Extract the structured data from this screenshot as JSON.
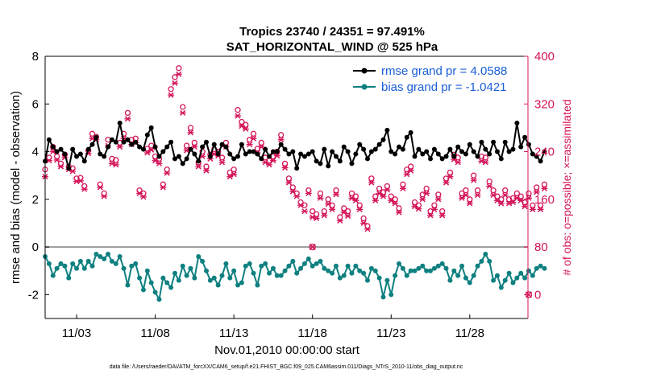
{
  "chart_data": {
    "type": "line",
    "title": [
      "Tropics 23740 / 24351 = 97.491%",
      "SAT_HORIZONTAL_WIND @ 525 hPa"
    ],
    "xlabel": "Nov.01,2010 00:00:00 start",
    "ylabel": "rmse and bias (model - observation)",
    "ylabel_right": "# of obs: o=possible; ×=assimilated",
    "footnote": "data file: /Users/raeder/DAI/ATM_forcXX/CAM6_setup/f.e21.FHIST_BGC.f09_025.CAM6assim.011/Diags_NTrS_2010-11/obs_diag_output.nc",
    "x_range": [
      1.0,
      31.7
    ],
    "ylim": [
      -3,
      8
    ],
    "ylim_right": [
      -40,
      400
    ],
    "x_ticks": [
      {
        "value": 3,
        "label": "11/03"
      },
      {
        "value": 8,
        "label": "11/08"
      },
      {
        "value": 13,
        "label": "11/13"
      },
      {
        "value": 18,
        "label": "11/18"
      },
      {
        "value": 23,
        "label": "11/23"
      },
      {
        "value": 28,
        "label": "11/28"
      }
    ],
    "y_ticks_left": [
      "-2",
      "0",
      "2",
      "4",
      "6",
      "8"
    ],
    "y_ticks_right": [
      "0",
      "80",
      "160",
      "240",
      "320",
      "400"
    ],
    "zero_line": 0,
    "x_start": 1.0,
    "x_step": 0.25,
    "legend": [
      {
        "label": "rmse grand pr = 4.0588",
        "color": "#000000"
      },
      {
        "label": "bias grand pr = -1.0421",
        "color": "#0f8080"
      }
    ],
    "series": [
      {
        "name": "rmse",
        "color": "#000000",
        "values": [
          3.6,
          4.5,
          4.2,
          4.0,
          4.1,
          3.9,
          3.3,
          4.1,
          3.8,
          3.9,
          3.6,
          4.1,
          4.3,
          4.6,
          3.9,
          3.8,
          4.2,
          4.5,
          4.4,
          5.2,
          4.4,
          4.5,
          4.3,
          4.4,
          4.2,
          4.1,
          4.7,
          5.0,
          4.2,
          3.8,
          4.0,
          4.2,
          4.4,
          3.7,
          3.8,
          3.5,
          3.7,
          4.1,
          3.9,
          3.6,
          4.2,
          4.4,
          3.8,
          4.3,
          3.9,
          4.3,
          4.2,
          3.9,
          3.7,
          3.8,
          4.3,
          3.9,
          4.0,
          4.0,
          3.9,
          3.7,
          4.1,
          3.8,
          4.0,
          4.0,
          4.3,
          4.1,
          3.9,
          4.0,
          3.3,
          3.9,
          3.8,
          3.9,
          4.0,
          3.6,
          3.5,
          4.1,
          3.4,
          4.0,
          3.8,
          3.6,
          4.2,
          4.0,
          3.5,
          3.9,
          4.3,
          4.1,
          3.7,
          4.0,
          4.1,
          4.3,
          4.5,
          4.9,
          4.0,
          3.9,
          4.2,
          4.1,
          4.6,
          4.8,
          3.8,
          4.1,
          3.9,
          4.0,
          3.7,
          4.1,
          3.9,
          3.7,
          3.8,
          4.1,
          3.8,
          4.2,
          4.0,
          3.9,
          4.3,
          4.0,
          3.8,
          4.4,
          4.1,
          3.9,
          4.4,
          4.0,
          3.7,
          4.4,
          4.0,
          4.1,
          5.2,
          4.2,
          4.6,
          4.3,
          3.9,
          3.8,
          3.6,
          4.0
        ]
      },
      {
        "name": "bias",
        "color": "#0f8080",
        "values": [
          -0.4,
          -0.7,
          -1.2,
          -0.9,
          -0.7,
          -0.8,
          -1.3,
          -0.7,
          -0.9,
          -0.6,
          -0.9,
          -0.6,
          -0.8,
          -0.3,
          -0.4,
          -0.5,
          -0.3,
          -0.6,
          -0.7,
          -0.4,
          -0.9,
          -1.6,
          -0.8,
          -0.7,
          -1.3,
          -1.8,
          -1.0,
          -1.5,
          -1.9,
          -2.2,
          -1.3,
          -1.5,
          -1.7,
          -1.1,
          -1.4,
          -0.8,
          -1.2,
          -0.9,
          -1.3,
          -0.4,
          -0.6,
          -1.0,
          -1.4,
          -1.3,
          -1.6,
          -1.2,
          -0.7,
          -1.3,
          -1.0,
          -1.6,
          -1.5,
          -0.8,
          -0.7,
          -1.1,
          -1.6,
          -0.8,
          -0.7,
          -1.1,
          -0.9,
          -1.2,
          -1.2,
          -1.0,
          -0.8,
          -0.6,
          -1.1,
          -0.9,
          -0.7,
          -0.5,
          -0.8,
          -0.7,
          -0.6,
          -0.9,
          -1.0,
          -1.1,
          -0.8,
          -1.3,
          -1.2,
          -0.8,
          -1.1,
          -0.8,
          -1.0,
          -1.1,
          -1.4,
          -0.9,
          -1.0,
          -1.3,
          -2.1,
          -1.4,
          -2.0,
          -1.2,
          -0.7,
          -0.9,
          -1.2,
          -1.0,
          -1.0,
          -0.9,
          -0.8,
          -1.0,
          -1.0,
          -0.9,
          -0.8,
          -0.7,
          -0.9,
          -1.4,
          -1.0,
          -1.2,
          -0.8,
          -1.3,
          -1.5,
          -1.2,
          -0.8,
          -0.6,
          -0.3,
          -0.6,
          -1.4,
          -1.2,
          -1.7,
          -1.4,
          -1.1,
          -1.5,
          -1.3,
          -1.1,
          -1.3,
          -1.0,
          -1.2,
          -0.9,
          -0.8,
          -0.9
        ]
      },
      {
        "name": "obs_possible",
        "color": "#d4145a",
        "marker": "circle",
        "values": [
          210,
          230,
          248,
          232,
          220,
          235,
          215,
          212,
          195,
          196,
          182,
          242,
          270,
          265,
          185,
          170,
          260,
          228,
          226,
          255,
          270,
          305,
          260,
          262,
          175,
          170,
          245,
          250,
          232,
          228,
          185,
          210,
          345,
          365,
          380,
          315,
          250,
          280,
          255,
          222,
          240,
          215,
          235,
          244,
          240,
          230,
          255,
          205,
          210,
          310,
          290,
          285,
          260,
          270,
          245,
          255,
          230,
          225,
          232,
          240,
          268,
          220,
          195,
          180,
          170,
          155,
          150,
          175,
          140,
          135,
          170,
          140,
          160,
          150,
          175,
          130,
          145,
          140,
          170,
          165,
          150,
          128,
          115,
          195,
          165,
          178,
          172,
          182,
          165,
          160,
          145,
          185,
          210,
          215,
          155,
          150,
          168,
          178,
          140,
          150,
          168,
          140,
          195,
          205,
          235,
          230,
          170,
          175,
          160,
          200,
          175,
          232,
          230,
          190,
          175,
          165,
          160,
          175,
          160,
          162,
          170,
          165,
          155,
          170,
          150,
          180,
          150,
          185
        ]
      },
      {
        "name": "obs_assimilated",
        "color": "#d4145a",
        "marker": "x",
        "values": [
          198,
          225,
          240,
          226,
          215,
          230,
          210,
          207,
          190,
          191,
          177,
          237,
          262,
          260,
          180,
          165,
          250,
          220,
          218,
          248,
          262,
          295,
          252,
          255,
          170,
          164,
          238,
          243,
          225,
          220,
          180,
          204,
          335,
          355,
          370,
          305,
          242,
          272,
          248,
          215,
          232,
          208,
          228,
          236,
          233,
          222,
          248,
          198,
          202,
          300,
          283,
          278,
          252,
          262,
          238,
          248,
          222,
          218,
          225,
          233,
          260,
          213,
          188,
          173,
          165,
          150,
          140,
          170,
          130,
          128,
          162,
          133,
          152,
          143,
          168,
          124,
          138,
          132,
          162,
          158,
          143,
          120,
          110,
          188,
          158,
          170,
          165,
          176,
          158,
          153,
          138,
          178,
          202,
          208,
          148,
          144,
          160,
          170,
          133,
          143,
          160,
          133,
          188,
          198,
          227,
          222,
          162,
          167,
          153,
          192,
          167,
          224,
          222,
          182,
          167,
          158,
          153,
          167,
          153,
          155,
          162,
          158,
          148,
          162,
          143,
          172,
          143,
          178
        ]
      }
    ],
    "obs_outliers": [
      {
        "x": 18.0,
        "value": 80,
        "color": "#d4145a"
      },
      {
        "x": 31.75,
        "value": 0,
        "color": "#d4145a"
      }
    ]
  }
}
